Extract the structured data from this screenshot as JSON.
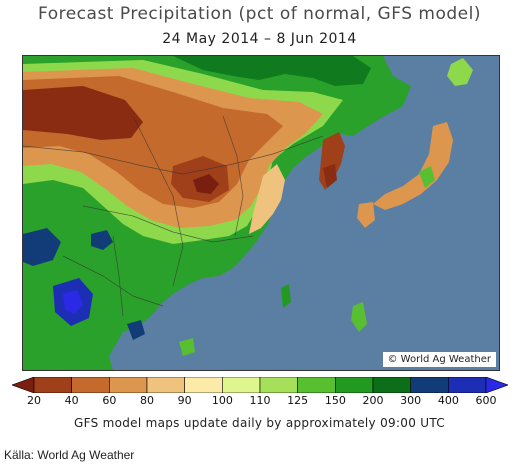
{
  "header": {
    "title": "Forecast Precipitation (pct of normal, GFS model)",
    "date_range": "24 May 2014 – 8 Jun 2014"
  },
  "map": {
    "credit": "© World Ag Weather",
    "water_color": "#5b7ea3"
  },
  "legend": {
    "ticks": [
      "20",
      "40",
      "60",
      "80",
      "90",
      "100",
      "110",
      "125",
      "150",
      "200",
      "300",
      "400",
      "600"
    ],
    "bins": [
      {
        "color": "#7a1f10"
      },
      {
        "color": "#a0401a"
      },
      {
        "color": "#c46a2c"
      },
      {
        "color": "#dc964e"
      },
      {
        "color": "#efc27e"
      },
      {
        "color": "#fbeaa8"
      },
      {
        "color": "#dff58e"
      },
      {
        "color": "#a6e05a"
      },
      {
        "color": "#58c030"
      },
      {
        "color": "#229a22"
      },
      {
        "color": "#0d6e1a"
      },
      {
        "color": "#123c78"
      },
      {
        "color": "#1c2fb4"
      },
      {
        "color": "#2a2ae6"
      }
    ]
  },
  "footer": {
    "note": "GFS model maps update daily by approximately 09:00 UTC",
    "source": "Källa: World Ag Weather"
  }
}
